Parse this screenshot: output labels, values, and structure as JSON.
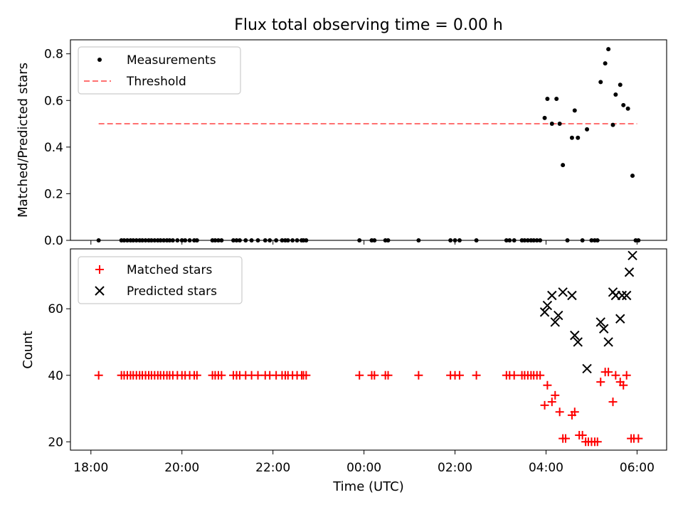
{
  "chart_data": [
    {
      "type": "scatter",
      "title": "Flux total observing time = 0.00 h",
      "xlabel": "",
      "ylabel": "Matched/Predicted stars",
      "ylim": [
        0,
        0.86
      ],
      "yticks": [
        "0.0",
        "0.2",
        "0.4",
        "0.6",
        "0.8"
      ],
      "ytick_values": [
        0,
        0.2,
        0.4,
        0.6,
        0.8
      ],
      "legend_position": "top-left",
      "series": [
        {
          "name": "Measurements",
          "marker": "dot",
          "color": "#000000",
          "points": [
            [
              18.17,
              0
            ],
            [
              18.67,
              0
            ],
            [
              18.73,
              0
            ],
            [
              18.8,
              0
            ],
            [
              18.87,
              0
            ],
            [
              18.93,
              0
            ],
            [
              19.0,
              0
            ],
            [
              19.07,
              0
            ],
            [
              19.13,
              0
            ],
            [
              19.2,
              0
            ],
            [
              19.27,
              0
            ],
            [
              19.33,
              0
            ],
            [
              19.4,
              0
            ],
            [
              19.47,
              0
            ],
            [
              19.53,
              0
            ],
            [
              19.6,
              0
            ],
            [
              19.67,
              0
            ],
            [
              19.73,
              0
            ],
            [
              19.8,
              0
            ],
            [
              19.9,
              0
            ],
            [
              20.0,
              0
            ],
            [
              20.07,
              0
            ],
            [
              20.17,
              0
            ],
            [
              20.27,
              0
            ],
            [
              20.33,
              0
            ],
            [
              20.67,
              0
            ],
            [
              20.73,
              0
            ],
            [
              20.8,
              0
            ],
            [
              20.87,
              0
            ],
            [
              21.13,
              0
            ],
            [
              21.2,
              0
            ],
            [
              21.27,
              0
            ],
            [
              21.4,
              0
            ],
            [
              21.53,
              0
            ],
            [
              21.67,
              0
            ],
            [
              21.83,
              0
            ],
            [
              21.93,
              0
            ],
            [
              22.07,
              0
            ],
            [
              22.2,
              0
            ],
            [
              22.27,
              0
            ],
            [
              22.33,
              0
            ],
            [
              22.43,
              0
            ],
            [
              22.53,
              0
            ],
            [
              22.63,
              0
            ],
            [
              22.67,
              0
            ],
            [
              22.73,
              0
            ],
            [
              23.9,
              0
            ],
            [
              24.17,
              0
            ],
            [
              24.23,
              0
            ],
            [
              24.47,
              0
            ],
            [
              24.53,
              0
            ],
            [
              25.2,
              0
            ],
            [
              25.9,
              0
            ],
            [
              26.0,
              0
            ],
            [
              26.1,
              0
            ],
            [
              26.47,
              0
            ],
            [
              27.13,
              0
            ],
            [
              27.2,
              0
            ],
            [
              27.3,
              0
            ],
            [
              27.47,
              0
            ],
            [
              27.53,
              0
            ],
            [
              27.6,
              0
            ],
            [
              27.67,
              0
            ],
            [
              27.73,
              0
            ],
            [
              27.8,
              0
            ],
            [
              27.87,
              0
            ],
            [
              27.97,
              0.525
            ],
            [
              28.03,
              0.607
            ],
            [
              28.13,
              0.5
            ],
            [
              28.23,
              0.607
            ],
            [
              28.3,
              0.5
            ],
            [
              28.37,
              0.323
            ],
            [
              28.47,
              0
            ],
            [
              28.57,
              0.44
            ],
            [
              28.63,
              0.557
            ],
            [
              28.7,
              0.44
            ],
            [
              28.8,
              0
            ],
            [
              28.9,
              0.476
            ],
            [
              29.0,
              0
            ],
            [
              29.07,
              0
            ],
            [
              29.13,
              0
            ],
            [
              29.2,
              0.679
            ],
            [
              29.3,
              0.759
            ],
            [
              29.37,
              0.82
            ],
            [
              29.47,
              0.495
            ],
            [
              29.53,
              0.625
            ],
            [
              29.63,
              0.667
            ],
            [
              29.7,
              0.58
            ],
            [
              29.8,
              0.565
            ],
            [
              29.9,
              0.277
            ],
            [
              29.97,
              0
            ],
            [
              30.03,
              0
            ]
          ]
        },
        {
          "name": "Threshold",
          "marker": "dashed-line",
          "color": "#ff7070",
          "points": [
            [
              18.17,
              0.5
            ],
            [
              30.0,
              0.5
            ]
          ]
        }
      ]
    },
    {
      "type": "scatter",
      "title": "",
      "xlabel": "Time (UTC)",
      "ylabel": "Count",
      "ylim": [
        17.5,
        78
      ],
      "yticks": [
        "20",
        "40",
        "60"
      ],
      "ytick_values": [
        20,
        40,
        60
      ],
      "xlim": [
        17.55,
        30.65
      ],
      "xticks": [
        "18:00",
        "20:00",
        "22:00",
        "00:00",
        "02:00",
        "04:00",
        "06:00"
      ],
      "xtick_values": [
        18,
        20,
        22,
        24,
        26,
        28,
        30
      ],
      "legend_position": "top-left",
      "series": [
        {
          "name": "Matched stars",
          "marker": "plus",
          "color": "#ff0000",
          "points": [
            [
              18.17,
              40
            ],
            [
              18.67,
              40
            ],
            [
              18.73,
              40
            ],
            [
              18.8,
              40
            ],
            [
              18.87,
              40
            ],
            [
              18.93,
              40
            ],
            [
              19.0,
              40
            ],
            [
              19.07,
              40
            ],
            [
              19.13,
              40
            ],
            [
              19.2,
              40
            ],
            [
              19.27,
              40
            ],
            [
              19.33,
              40
            ],
            [
              19.4,
              40
            ],
            [
              19.47,
              40
            ],
            [
              19.53,
              40
            ],
            [
              19.6,
              40
            ],
            [
              19.67,
              40
            ],
            [
              19.73,
              40
            ],
            [
              19.8,
              40
            ],
            [
              19.9,
              40
            ],
            [
              20.0,
              40
            ],
            [
              20.07,
              40
            ],
            [
              20.17,
              40
            ],
            [
              20.27,
              40
            ],
            [
              20.33,
              40
            ],
            [
              20.67,
              40
            ],
            [
              20.73,
              40
            ],
            [
              20.8,
              40
            ],
            [
              20.87,
              40
            ],
            [
              21.13,
              40
            ],
            [
              21.2,
              40
            ],
            [
              21.27,
              40
            ],
            [
              21.4,
              40
            ],
            [
              21.53,
              40
            ],
            [
              21.67,
              40
            ],
            [
              21.83,
              40
            ],
            [
              21.93,
              40
            ],
            [
              22.07,
              40
            ],
            [
              22.2,
              40
            ],
            [
              22.27,
              40
            ],
            [
              22.33,
              40
            ],
            [
              22.43,
              40
            ],
            [
              22.53,
              40
            ],
            [
              22.63,
              40
            ],
            [
              22.67,
              40
            ],
            [
              22.73,
              40
            ],
            [
              23.9,
              40
            ],
            [
              24.17,
              40
            ],
            [
              24.23,
              40
            ],
            [
              24.47,
              40
            ],
            [
              24.53,
              40
            ],
            [
              25.2,
              40
            ],
            [
              25.9,
              40
            ],
            [
              26.0,
              40
            ],
            [
              26.1,
              40
            ],
            [
              26.47,
              40
            ],
            [
              27.13,
              40
            ],
            [
              27.2,
              40
            ],
            [
              27.3,
              40
            ],
            [
              27.47,
              40
            ],
            [
              27.53,
              40
            ],
            [
              27.6,
              40
            ],
            [
              27.67,
              40
            ],
            [
              27.73,
              40
            ],
            [
              27.8,
              40
            ],
            [
              27.87,
              40
            ],
            [
              27.97,
              31
            ],
            [
              28.03,
              37
            ],
            [
              28.13,
              32
            ],
            [
              28.2,
              34
            ],
            [
              28.3,
              29
            ],
            [
              28.37,
              21
            ],
            [
              28.43,
              21
            ],
            [
              28.57,
              28
            ],
            [
              28.63,
              29
            ],
            [
              28.73,
              22
            ],
            [
              28.8,
              22
            ],
            [
              28.87,
              20
            ],
            [
              28.93,
              20
            ],
            [
              29.0,
              20
            ],
            [
              29.07,
              20
            ],
            [
              29.13,
              20
            ],
            [
              29.2,
              38
            ],
            [
              29.3,
              41
            ],
            [
              29.37,
              41
            ],
            [
              29.47,
              32
            ],
            [
              29.53,
              40
            ],
            [
              29.63,
              38
            ],
            [
              29.7,
              37
            ],
            [
              29.77,
              40
            ],
            [
              29.87,
              21
            ],
            [
              29.93,
              21
            ],
            [
              30.03,
              21
            ]
          ]
        },
        {
          "name": "Predicted stars",
          "marker": "x",
          "color": "#000000",
          "points": [
            [
              27.97,
              59
            ],
            [
              28.03,
              61
            ],
            [
              28.13,
              64
            ],
            [
              28.2,
              56
            ],
            [
              28.27,
              58
            ],
            [
              28.37,
              65
            ],
            [
              28.57,
              64
            ],
            [
              28.63,
              52
            ],
            [
              28.7,
              50
            ],
            [
              28.9,
              42
            ],
            [
              29.2,
              56
            ],
            [
              29.27,
              54
            ],
            [
              29.37,
              50
            ],
            [
              29.47,
              65
            ],
            [
              29.53,
              64
            ],
            [
              29.63,
              57
            ],
            [
              29.67,
              64
            ],
            [
              29.77,
              64
            ],
            [
              29.83,
              71
            ],
            [
              29.9,
              76
            ]
          ]
        }
      ]
    }
  ]
}
